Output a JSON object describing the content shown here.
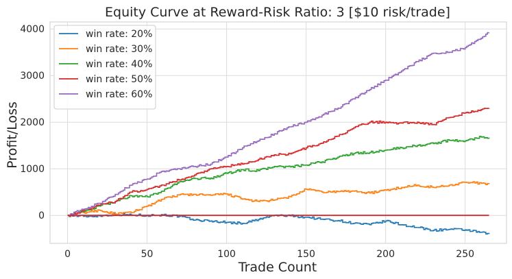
{
  "chart_data": {
    "type": "line",
    "title": "Equity Curve at Reward-Risk Ratio: 3 [$10 risk/trade]",
    "xlabel": "Trade Count",
    "ylabel": "Profit/Loss",
    "xlim": [
      -11,
      276
    ],
    "ylim": [
      -600,
      4150
    ],
    "xticks": [
      0,
      50,
      100,
      150,
      200,
      250
    ],
    "yticks": [
      0,
      1000,
      2000,
      3000,
      4000
    ],
    "grid": true,
    "legend": "top-left",
    "baseline": {
      "value": 0,
      "color": "#d62728"
    },
    "series": [
      {
        "name": "win rate: 20%",
        "color": "#1f77b4",
        "x": [
          0,
          10,
          20,
          30,
          40,
          50,
          60,
          70,
          80,
          90,
          100,
          110,
          120,
          130,
          140,
          150,
          160,
          170,
          180,
          190,
          200,
          210,
          220,
          230,
          240,
          250,
          265
        ],
        "y": [
          0,
          -20,
          -10,
          20,
          10,
          0,
          10,
          -20,
          -100,
          -120,
          -150,
          -170,
          -90,
          0,
          -10,
          -40,
          -80,
          -110,
          -170,
          -200,
          -120,
          -200,
          -260,
          -320,
          -300,
          -310,
          -400
        ]
      },
      {
        "name": "win rate: 30%",
        "color": "#ff7f0e",
        "x": [
          0,
          10,
          20,
          30,
          40,
          50,
          60,
          70,
          80,
          90,
          100,
          110,
          120,
          130,
          140,
          150,
          160,
          170,
          180,
          190,
          200,
          210,
          220,
          230,
          240,
          250,
          260,
          265
        ],
        "y": [
          0,
          60,
          110,
          30,
          60,
          200,
          350,
          440,
          450,
          430,
          460,
          350,
          300,
          330,
          400,
          560,
          500,
          510,
          520,
          480,
          540,
          600,
          650,
          600,
          650,
          710,
          690,
          670
        ]
      },
      {
        "name": "win rate: 40%",
        "color": "#2ca02c",
        "x": [
          0,
          10,
          20,
          30,
          40,
          50,
          60,
          70,
          80,
          90,
          100,
          110,
          120,
          130,
          140,
          150,
          160,
          170,
          180,
          190,
          200,
          210,
          220,
          230,
          240,
          250,
          260,
          265
        ],
        "y": [
          0,
          80,
          200,
          300,
          420,
          400,
          520,
          720,
          790,
          800,
          900,
          980,
          960,
          1050,
          1040,
          1080,
          1150,
          1250,
          1330,
          1350,
          1400,
          1450,
          1500,
          1540,
          1610,
          1600,
          1680,
          1670
        ]
      },
      {
        "name": "win rate: 50%",
        "color": "#d62728",
        "x": [
          0,
          10,
          20,
          30,
          40,
          50,
          60,
          70,
          80,
          90,
          100,
          110,
          120,
          130,
          140,
          150,
          160,
          170,
          180,
          190,
          200,
          210,
          220,
          230,
          240,
          250,
          260,
          265
        ],
        "y": [
          0,
          100,
          220,
          300,
          500,
          560,
          650,
          760,
          870,
          1000,
          1050,
          1100,
          1200,
          1300,
          1320,
          1450,
          1550,
          1700,
          1880,
          2000,
          2000,
          1980,
          2000,
          1950,
          2100,
          2200,
          2270,
          2300
        ]
      },
      {
        "name": "win rate: 60%",
        "color": "#9467bd",
        "x": [
          0,
          10,
          20,
          30,
          40,
          50,
          60,
          70,
          80,
          90,
          100,
          110,
          120,
          130,
          140,
          150,
          160,
          170,
          180,
          190,
          200,
          210,
          220,
          230,
          240,
          250,
          260,
          265
        ],
        "y": [
          0,
          130,
          260,
          450,
          650,
          780,
          950,
          1000,
          1050,
          1100,
          1250,
          1450,
          1600,
          1750,
          1900,
          2000,
          2150,
          2300,
          2500,
          2700,
          2900,
          3100,
          3300,
          3480,
          3500,
          3600,
          3800,
          3920
        ]
      }
    ]
  }
}
